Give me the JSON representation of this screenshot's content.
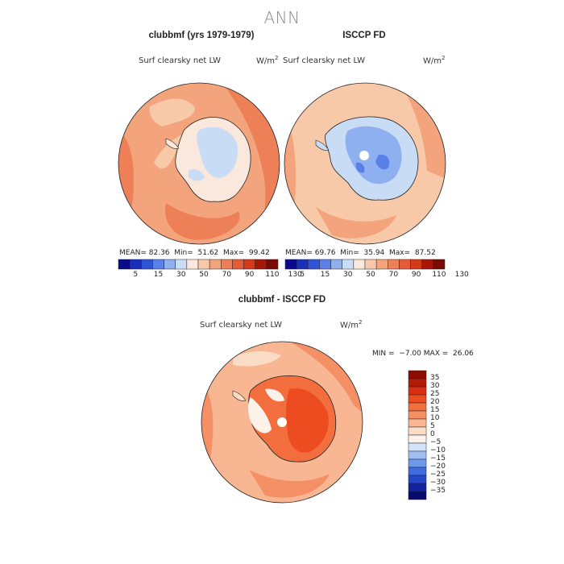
{
  "figure": {
    "title": "ANN"
  },
  "panels": [
    {
      "title": "clubbmf (yrs 1979-1979)",
      "variable": "Surf clearsky net LW",
      "unit_base": "W/m",
      "unit_exp": "2",
      "mean_label": "MEAN=",
      "mean": "82.36",
      "min_label": "Min=",
      "min": "51.62",
      "max_label": "Max=",
      "max": "99.42"
    },
    {
      "title": "ISCCP FD",
      "variable": "Surf clearsky net LW",
      "unit_base": "W/m",
      "unit_exp": "2",
      "mean_label": "MEAN=",
      "mean": "69.76",
      "min_label": "Min=",
      "min": "35.94",
      "max_label": "Max=",
      "max": "87.52"
    },
    {
      "title": "clubbmf - ISCCP FD",
      "variable": "Surf clearsky net LW",
      "unit_base": "W/m",
      "unit_exp": "2",
      "min_label": "MIN =",
      "min": "−7.00",
      "max_label": "MAX =",
      "max": "26.06"
    }
  ],
  "colorbar_top": {
    "ticks": [
      "5",
      "15",
      "30",
      "50",
      "70",
      "90",
      "110",
      "130"
    ],
    "colors": [
      "#0a0a8c",
      "#1a2fb8",
      "#2f55d6",
      "#5a80e8",
      "#8fb0f0",
      "#c9dcf6",
      "#fbe8dc",
      "#f8c9a8",
      "#f3a47c",
      "#ee8058",
      "#e65c38",
      "#d23a1a",
      "#a81608",
      "#7a0a04"
    ]
  },
  "colorbar_diff": {
    "ticks": [
      "35",
      "30",
      "25",
      "20",
      "15",
      "10",
      "5",
      "0",
      "−5",
      "−10",
      "−15",
      "−20",
      "−25",
      "−30",
      "−35"
    ],
    "colors": [
      "#8a0c04",
      "#b21a08",
      "#d63010",
      "#ec4c20",
      "#f26e3e",
      "#f59066",
      "#f8b692",
      "#fbdcc6",
      "#fdf2ea",
      "#d6e4f8",
      "#9fbff2",
      "#6e98ea",
      "#3e6be0",
      "#2446c8",
      "#12229e",
      "#080a70"
    ]
  },
  "map_colors": {
    "ocean_light": "#f8c9a8",
    "ocean_mid": "#f3a47c",
    "ocean_strong": "#ee8058",
    "land_pale": "#fbe8dc",
    "land_ice": "#c9dcf6",
    "land_blue": "#8fb0f0",
    "land_blue2": "#5a80e8",
    "diff_land": "#ec4c20",
    "diff_mid": "#f26e3e",
    "diff_pale": "#fdf2ea"
  }
}
